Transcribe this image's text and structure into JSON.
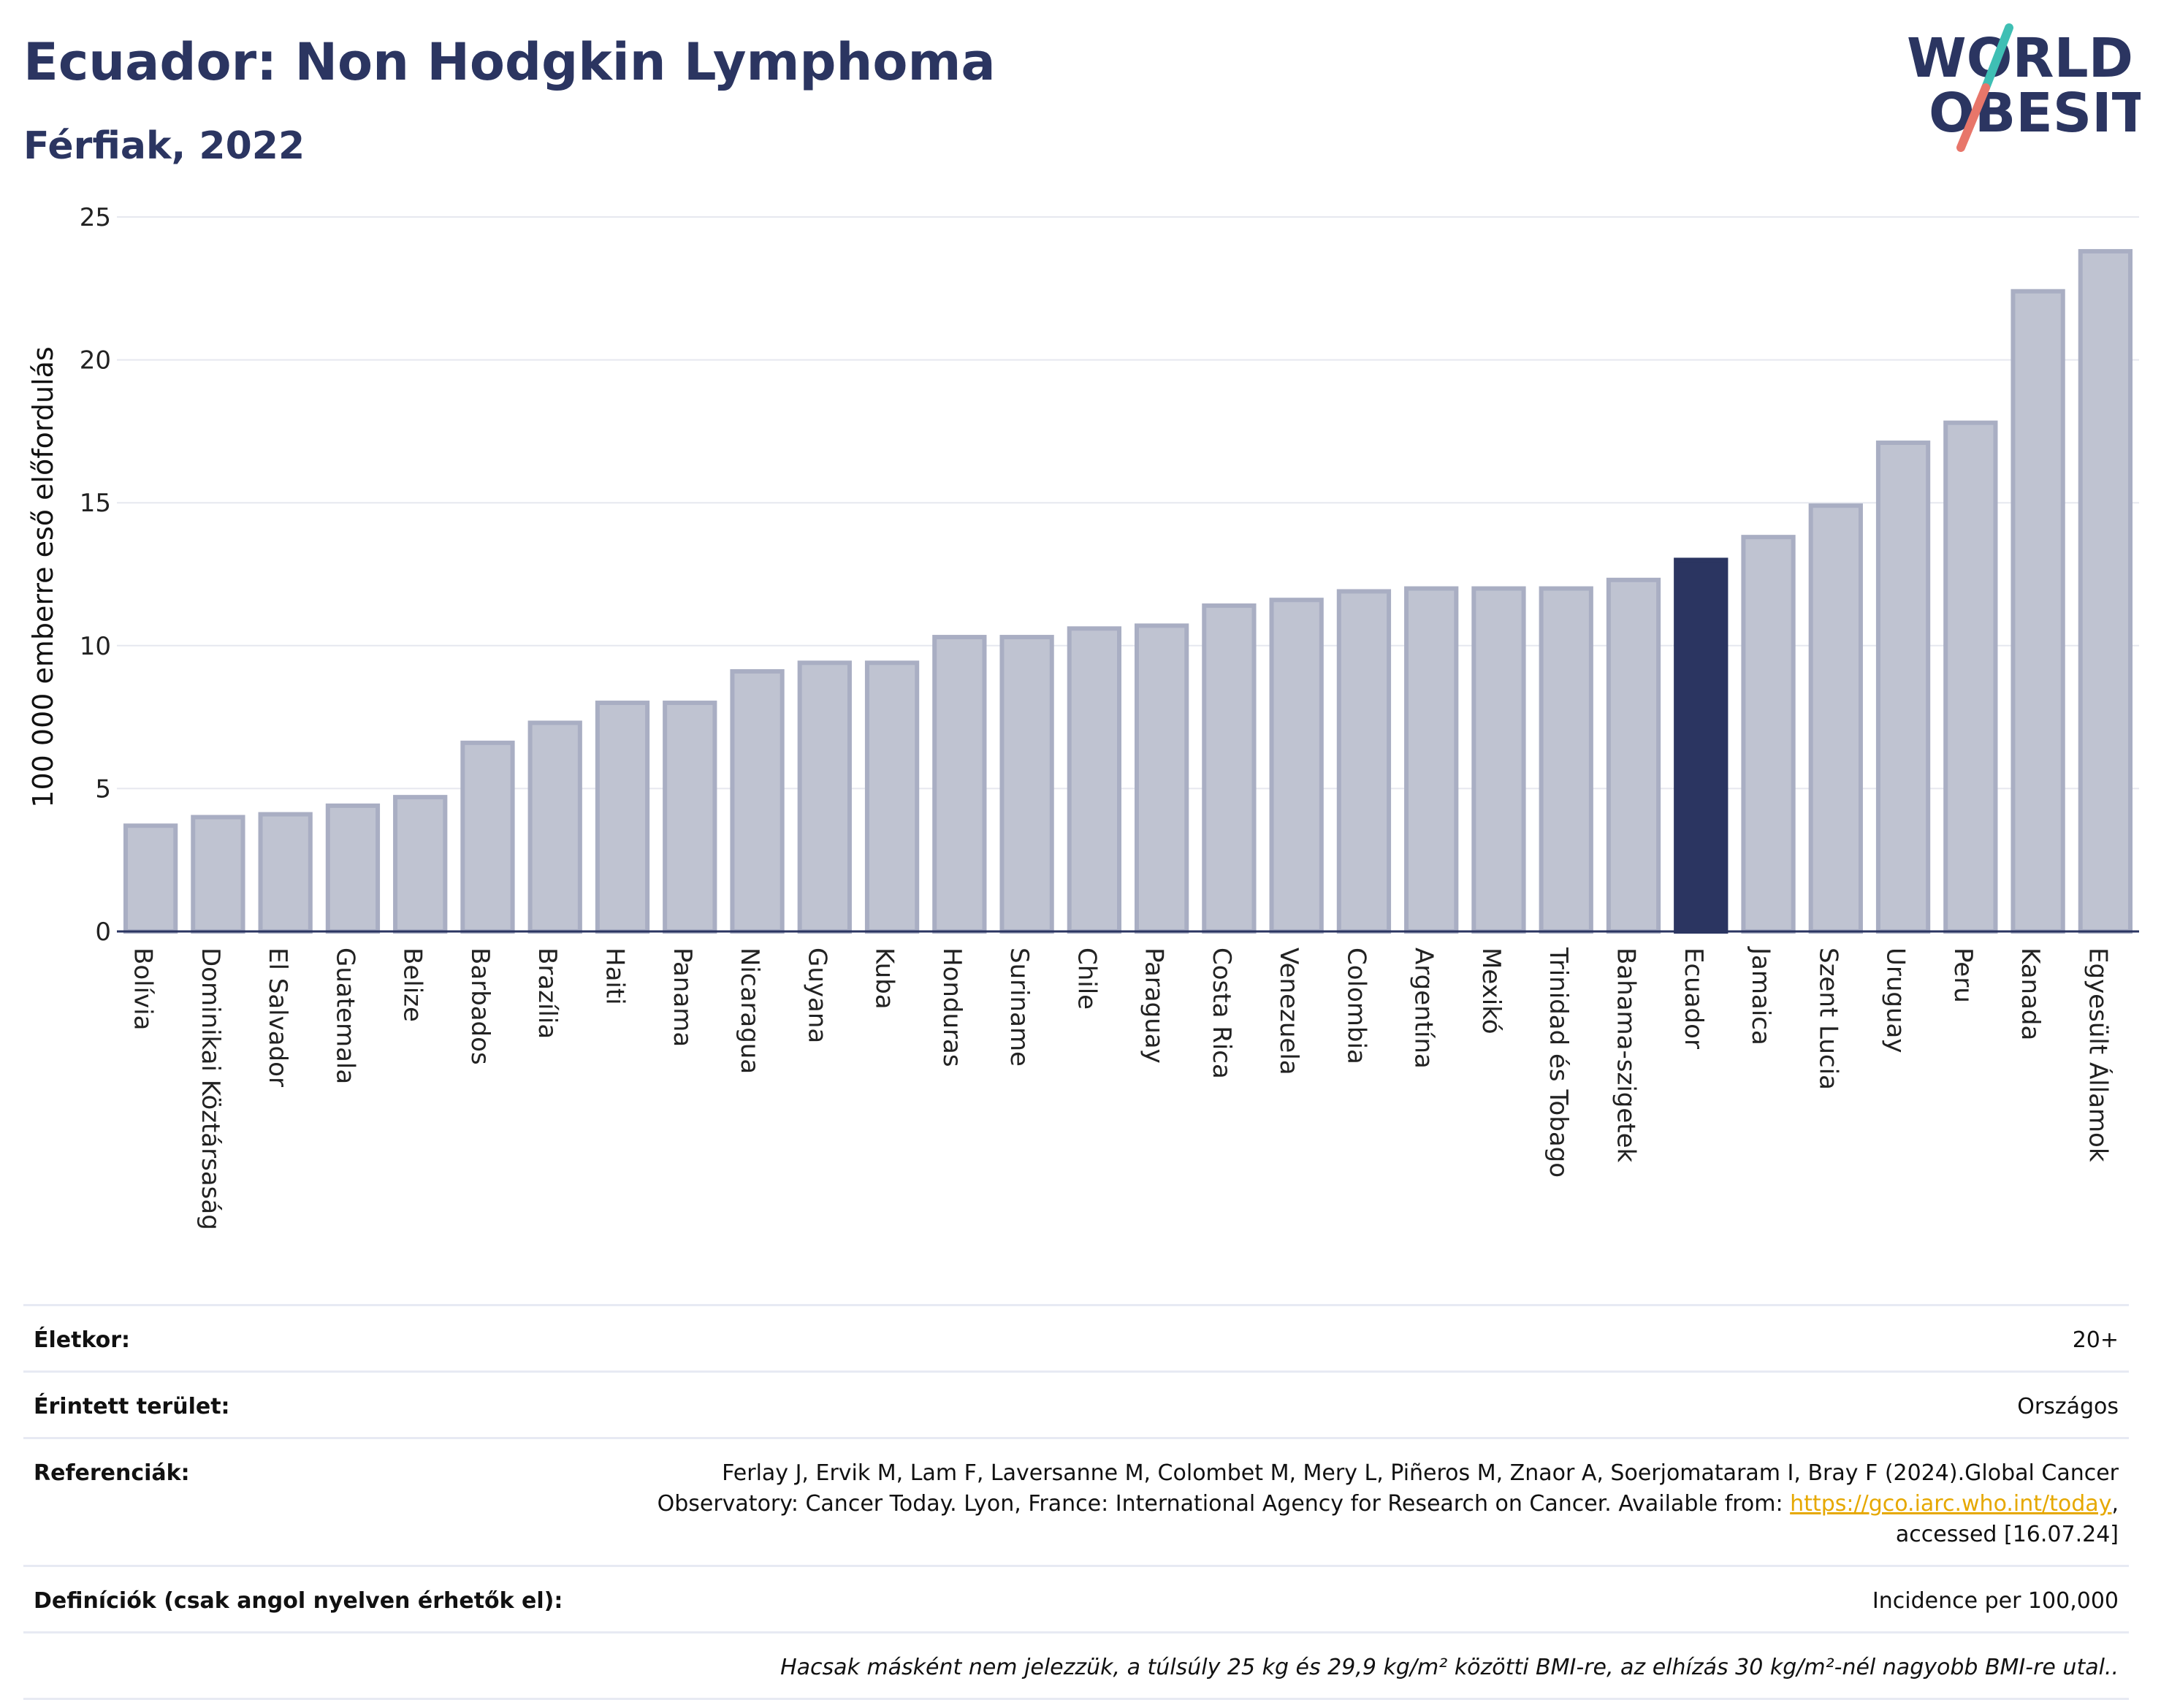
{
  "header": {
    "title": "Ecuador: Non Hodgkin Lymphoma",
    "subtitle": "Férfiak, 2022"
  },
  "logo": {
    "line1": "WORLD",
    "line2": "OBESITY",
    "icon": "world-obesity-logo"
  },
  "colors": {
    "bar": "#bfc3d1",
    "bar_stroke": "#a9aec3",
    "highlight": "#2b3561",
    "grid": "#e6e8ef",
    "link": "#e6a800"
  },
  "chart_data": {
    "type": "bar",
    "ylabel": "100 000 emberre eső előfordulás",
    "ylim": [
      0,
      25
    ],
    "yticks": [
      0,
      5,
      10,
      15,
      20,
      25
    ],
    "grid": true,
    "highlight": "Ecuador",
    "categories": [
      "Bolívia",
      "Dominikai Köztársaság",
      "El Salvador",
      "Guatemala",
      "Belize",
      "Barbados",
      "Brazília",
      "Haiti",
      "Panama",
      "Nicaragua",
      "Guyana",
      "Kuba",
      "Honduras",
      "Suriname",
      "Chile",
      "Paraguay",
      "Costa Rica",
      "Venezuela",
      "Colombia",
      "Argentína",
      "Mexikó",
      "Trinidad és Tobago",
      "Bahama-szigetek",
      "Ecuador",
      "Jamaica",
      "Szent Lucia",
      "Uruguay",
      "Peru",
      "Kanada",
      "Egyesült Államok"
    ],
    "values": [
      3.7,
      4.0,
      4.1,
      4.4,
      4.7,
      6.6,
      7.3,
      8.0,
      8.0,
      9.1,
      9.4,
      9.4,
      10.3,
      10.3,
      10.6,
      10.7,
      11.4,
      11.6,
      11.9,
      12.0,
      12.0,
      12.0,
      12.3,
      13.0,
      13.8,
      14.9,
      17.1,
      17.8,
      22.4,
      23.8
    ]
  },
  "info": {
    "age_label": "Életkor:",
    "age_value": "20+",
    "area_label": "Érintett terület:",
    "area_value": "Országos",
    "ref_label": "Referenciák:",
    "ref_text1": "Ferlay J, Ervik M, Lam F, Laversanne M, Colombet M, Mery L, Piñeros M, Znaor A, Soerjomataram I, Bray F (2024).Global Cancer",
    "ref_text2": "Observatory: Cancer Today. Lyon, France: International Agency for Research on Cancer. Available from: ",
    "ref_link": "https://gco.iarc.who.int/today",
    "ref_text3": ",",
    "ref_text4": "accessed [16.07.24]",
    "def_label": "Definíciók (csak angol nyelven érhetők el):",
    "def_value": "Incidence per 100,000",
    "note": "Hacsak másként nem jelezzük, a túlsúly 25 kg és 29,9 kg/m² közötti BMI-re, az elhízás 30 kg/m²-nél nagyobb BMI-re utal.."
  }
}
